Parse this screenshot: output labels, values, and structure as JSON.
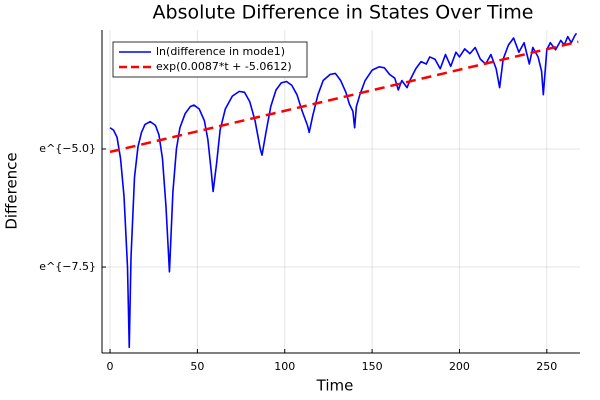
{
  "chart_data": {
    "type": "line",
    "title": "Absolute Difference in States Over Time",
    "x_label": "Time",
    "y_label": "Difference",
    "xlim": [
      -4.6,
      269
    ],
    "ylim": [
      -9.32,
      -2.48
    ],
    "xticks": [
      0,
      50,
      100,
      150,
      200,
      250
    ],
    "yticks": [
      {
        "value": -5.0,
        "label": "e^{−5.0}"
      },
      {
        "value": -7.5,
        "label": "e^{−7.5}"
      }
    ],
    "grid": true,
    "legend": "top-left",
    "series": [
      {
        "name": "ln(difference in mode1)",
        "color": "#0000ff",
        "style": "solid",
        "x": [
          0,
          2,
          4,
          6,
          8,
          10,
          11,
          12,
          14,
          16,
          18,
          20,
          23,
          26,
          28,
          30,
          32,
          34,
          36,
          38,
          40,
          43,
          46,
          48,
          51,
          54,
          56,
          58,
          59,
          61,
          63,
          66,
          70,
          74,
          77,
          80,
          83,
          86,
          87,
          89,
          92,
          95,
          98,
          101,
          104,
          107,
          110,
          113,
          114,
          116,
          119,
          122,
          126,
          129,
          132,
          135,
          137,
          139,
          140,
          141,
          143,
          146,
          150,
          154,
          157,
          160,
          163,
          165,
          167,
          170,
          172,
          175,
          178,
          181,
          183,
          186,
          189,
          192,
          195,
          198,
          200,
          203,
          206,
          209,
          212,
          215,
          218,
          221,
          223,
          225,
          228,
          231,
          234,
          237,
          240,
          242,
          245,
          247,
          248,
          250,
          252,
          255,
          258,
          260,
          262,
          264,
          266,
          267
        ],
        "values": [
          -4.55,
          -4.6,
          -4.75,
          -5.2,
          -6.0,
          -7.5,
          -9.2,
          -7.3,
          -5.6,
          -4.95,
          -4.65,
          -4.48,
          -4.42,
          -4.5,
          -4.7,
          -5.2,
          -6.2,
          -7.6,
          -5.9,
          -5.0,
          -4.55,
          -4.25,
          -4.1,
          -4.07,
          -4.15,
          -4.4,
          -4.8,
          -5.5,
          -5.9,
          -5.3,
          -4.6,
          -4.15,
          -3.88,
          -3.78,
          -3.8,
          -4.0,
          -4.4,
          -5.0,
          -5.13,
          -4.7,
          -4.1,
          -3.75,
          -3.6,
          -3.57,
          -3.65,
          -3.85,
          -4.2,
          -4.5,
          -4.65,
          -4.3,
          -3.85,
          -3.55,
          -3.42,
          -3.4,
          -3.55,
          -3.8,
          -4.05,
          -4.2,
          -4.55,
          -4.1,
          -3.85,
          -3.55,
          -3.33,
          -3.26,
          -3.28,
          -3.42,
          -3.5,
          -3.75,
          -3.55,
          -3.7,
          -3.52,
          -3.3,
          -3.15,
          -3.2,
          -3.05,
          -3.1,
          -3.3,
          -3.0,
          -3.25,
          -2.95,
          -3.05,
          -2.88,
          -2.98,
          -2.85,
          -3.1,
          -3.2,
          -3.0,
          -3.3,
          -3.7,
          -3.1,
          -2.8,
          -2.65,
          -2.95,
          -2.75,
          -3.2,
          -2.85,
          -3.05,
          -3.35,
          -3.85,
          -2.9,
          -2.75,
          -2.9,
          -2.7,
          -2.8,
          -2.62,
          -2.75,
          -2.6,
          -2.55
        ]
      },
      {
        "name": "exp(0.0087*t + -5.0612)",
        "color": "#ff0000",
        "style": "dash",
        "x": [
          0,
          268
        ],
        "values": [
          -5.0612,
          -2.7296
        ]
      }
    ]
  }
}
